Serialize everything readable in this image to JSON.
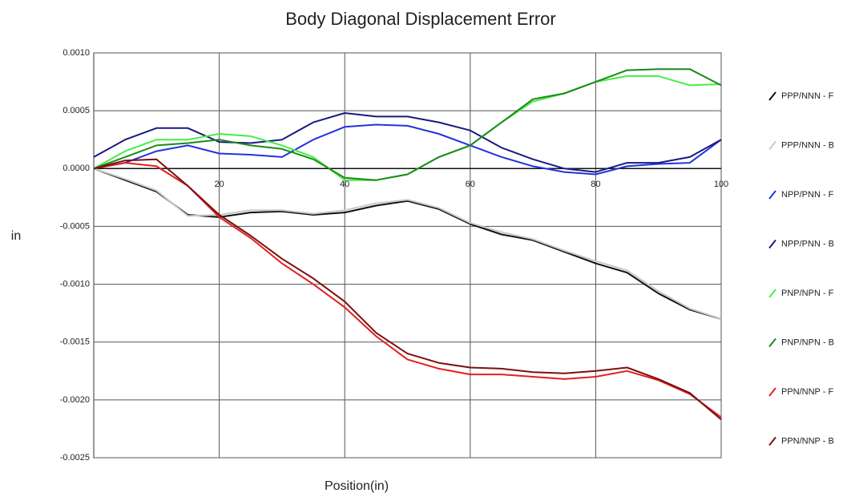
{
  "chart_data": {
    "type": "line",
    "title": "Body Diagonal Displacement Error",
    "xlabel": "Position(in)",
    "ylabel": "in",
    "x": [
      0,
      5,
      10,
      15,
      20,
      25,
      30,
      35,
      40,
      45,
      50,
      55,
      60,
      65,
      70,
      75,
      80,
      85,
      90,
      95,
      100
    ],
    "xlim": [
      0,
      100
    ],
    "xticks": [
      20,
      40,
      60,
      80,
      100
    ],
    "ylim": [
      -0.0025,
      0.001
    ],
    "yticks": [
      {
        "value": 0.001,
        "label": "0.0010"
      },
      {
        "value": 0.0005,
        "label": "0.0005"
      },
      {
        "value": 0,
        "label": "0.0000"
      },
      {
        "value": -0.0005,
        "label": "-0.0005"
      },
      {
        "value": -0.001,
        "label": "-0.0010"
      },
      {
        "value": -0.0015,
        "label": "-0.0015"
      },
      {
        "value": -0.002,
        "label": "-0.0020"
      },
      {
        "value": -0.0025,
        "label": "-0.0025"
      }
    ],
    "grid": true,
    "legend": "right",
    "series": [
      {
        "name": "PPP/NNN - F",
        "color": "#111111",
        "values": [
          0,
          -0.0001,
          -0.0002,
          -0.0004,
          -0.00042,
          -0.00038,
          -0.00037,
          -0.0004,
          -0.00038,
          -0.00032,
          -0.00028,
          -0.00035,
          -0.00048,
          -0.00057,
          -0.00062,
          -0.00072,
          -0.00082,
          -0.0009,
          -0.00108,
          -0.00122,
          -0.0013
        ]
      },
      {
        "name": "PPP/NNN - B",
        "color": "#c8c8c8",
        "values": [
          0,
          -9e-05,
          -0.00019,
          -0.00041,
          -0.0004,
          -0.00036,
          -0.00036,
          -0.00039,
          -0.00036,
          -0.0003,
          -0.00027,
          -0.00034,
          -0.00047,
          -0.00055,
          -0.00061,
          -0.00071,
          -0.0008,
          -0.00088,
          -0.00106,
          -0.00121,
          -0.0013
        ]
      },
      {
        "name": "NPP/PNN - F",
        "color": "#2233dd",
        "values": [
          0,
          5e-05,
          0.00015,
          0.0002,
          0.00013,
          0.00012,
          0.0001,
          0.00025,
          0.00036,
          0.00038,
          0.00037,
          0.0003,
          0.0002,
          0.0001,
          2e-05,
          -3e-05,
          -5e-05,
          2e-05,
          4e-05,
          5e-05,
          0.00025
        ]
      },
      {
        "name": "NPP/PNN - B",
        "color": "#1a1a80",
        "values": [
          0.0001,
          0.00025,
          0.00035,
          0.00035,
          0.00023,
          0.00022,
          0.00025,
          0.0004,
          0.00048,
          0.00045,
          0.00045,
          0.0004,
          0.00033,
          0.00018,
          8e-05,
          0,
          -3e-05,
          5e-05,
          5e-05,
          0.0001,
          0.00025
        ]
      },
      {
        "name": "PNP/NPN - F",
        "color": "#44ee44",
        "values": [
          0,
          0.00015,
          0.00025,
          0.00025,
          0.0003,
          0.00028,
          0.0002,
          0.0001,
          -0.0001,
          -0.0001,
          -5e-05,
          0.0001,
          0.0002,
          0.0004,
          0.00058,
          0.00065,
          0.00075,
          0.0008,
          0.0008,
          0.00072,
          0.00073
        ]
      },
      {
        "name": "PNP/NPN - B",
        "color": "#1a8a1a",
        "values": [
          0,
          0.0001,
          0.0002,
          0.00022,
          0.00025,
          0.0002,
          0.00017,
          8e-05,
          -8e-05,
          -0.0001,
          -5e-05,
          0.0001,
          0.0002,
          0.0004,
          0.0006,
          0.00065,
          0.00075,
          0.00085,
          0.00086,
          0.00086,
          0.00072
        ]
      },
      {
        "name": "PPN/NNP - F",
        "color": "#e02020",
        "values": [
          0,
          5e-05,
          2e-05,
          -0.00015,
          -0.00042,
          -0.0006,
          -0.00082,
          -0.001,
          -0.0012,
          -0.00145,
          -0.00165,
          -0.00173,
          -0.00178,
          -0.00178,
          -0.0018,
          -0.00182,
          -0.0018,
          -0.00175,
          -0.00183,
          -0.00195,
          -0.00215
        ]
      },
      {
        "name": "PPN/NNP - B",
        "color": "#7a1010",
        "values": [
          0,
          7e-05,
          8e-05,
          -0.00015,
          -0.0004,
          -0.00058,
          -0.00078,
          -0.00095,
          -0.00115,
          -0.00142,
          -0.0016,
          -0.00168,
          -0.00172,
          -0.00173,
          -0.00176,
          -0.00177,
          -0.00175,
          -0.00172,
          -0.00182,
          -0.00194,
          -0.00217
        ]
      }
    ]
  }
}
